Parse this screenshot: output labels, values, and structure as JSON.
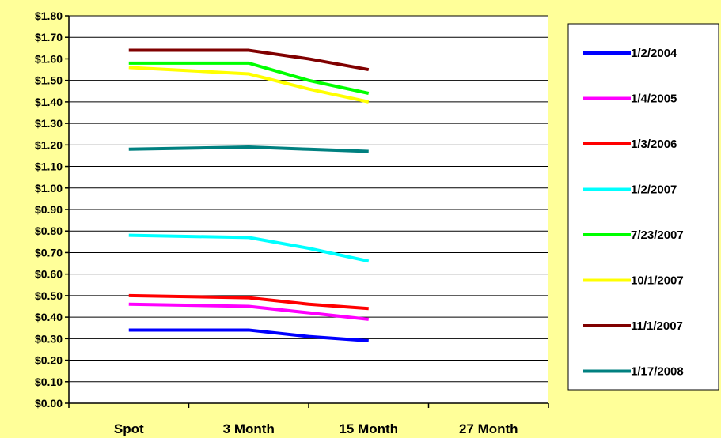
{
  "chart_data": {
    "type": "line",
    "categories": [
      "Spot",
      "3 Month",
      "15 Month",
      "27 Month"
    ],
    "y_tick_labels": [
      "$0.00",
      "$0.10",
      "$0.20",
      "$0.30",
      "$0.40",
      "$0.50",
      "$0.60",
      "$0.70",
      "$0.80",
      "$0.90",
      "$1.00",
      "$1.10",
      "$1.20",
      "$1.30",
      "$1.40",
      "$1.50",
      "$1.60",
      "$1.70",
      "$1.80"
    ],
    "ylim": [
      0,
      1.8
    ],
    "grid": true,
    "legend_position": "right",
    "colors": {
      "background": "#FFFF99",
      "plot_area": "#FFFFFF",
      "gridline": "#000000"
    },
    "series": [
      {
        "name": "1/2/2004",
        "color": "#0000FF",
        "x": [
          0,
          1,
          1.5,
          2
        ],
        "values": [
          0.34,
          0.34,
          0.31,
          0.29
        ]
      },
      {
        "name": "1/4/2005",
        "color": "#FF00FF",
        "x": [
          0,
          1,
          1.5,
          2
        ],
        "values": [
          0.46,
          0.45,
          0.42,
          0.39
        ]
      },
      {
        "name": "1/3/2006",
        "color": "#FF0000",
        "x": [
          0,
          1,
          1.5,
          2
        ],
        "values": [
          0.5,
          0.49,
          0.46,
          0.44
        ]
      },
      {
        "name": "1/2/2007",
        "color": "#00FFFF",
        "x": [
          0,
          1,
          1.5,
          2
        ],
        "values": [
          0.78,
          0.77,
          0.72,
          0.66
        ]
      },
      {
        "name": "7/23/2007",
        "color": "#00FF00",
        "x": [
          0,
          1,
          1.5,
          2
        ],
        "values": [
          1.58,
          1.58,
          1.5,
          1.44
        ]
      },
      {
        "name": "10/1/2007",
        "color": "#FFFF00",
        "x": [
          0,
          1,
          1.5,
          2
        ],
        "values": [
          1.56,
          1.53,
          1.46,
          1.4
        ]
      },
      {
        "name": "11/1/2007",
        "color": "#800000",
        "x": [
          0,
          1,
          1.5,
          2
        ],
        "values": [
          1.64,
          1.64,
          1.6,
          1.55
        ]
      },
      {
        "name": "1/17/2008",
        "color": "#008080",
        "x": [
          0,
          1,
          1.5,
          2
        ],
        "values": [
          1.18,
          1.19,
          1.18,
          1.17
        ]
      }
    ]
  }
}
